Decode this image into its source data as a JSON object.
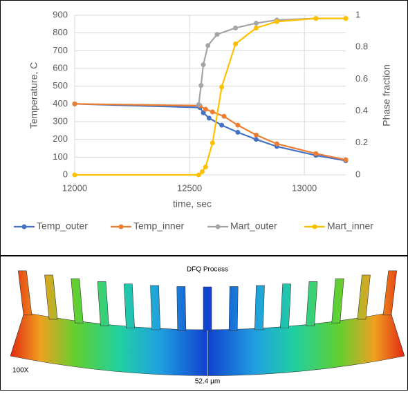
{
  "chart_data": {
    "type": "line",
    "x_label": "time, sec",
    "y_label": "Temperature, C",
    "y2_label": "Phase fraction",
    "xlim": [
      12000,
      13180
    ],
    "xticks": [
      12000,
      12500,
      13000
    ],
    "ylim": [
      0,
      900
    ],
    "yticks": [
      0,
      100,
      200,
      300,
      400,
      500,
      600,
      700,
      800,
      900
    ],
    "y2lim": [
      0,
      1
    ],
    "y2ticks": [
      0,
      0.2,
      0.4,
      0.6,
      0.8,
      1
    ],
    "grid": true,
    "legend": "bottom",
    "series": [
      {
        "name": "Temp_outer",
        "color": "#4472c4",
        "x": [
          12000,
          12545,
          12560,
          12585,
          12640,
          12710,
          12790,
          12880,
          13050,
          13180
        ],
        "values": [
          400,
          380,
          350,
          320,
          280,
          240,
          200,
          160,
          110,
          80
        ]
      },
      {
        "name": "Temp_inner",
        "color": "#ed7d31",
        "x": [
          12000,
          12545,
          12570,
          12600,
          12650,
          12710,
          12790,
          12880,
          13050,
          13180
        ],
        "values": [
          400,
          390,
          370,
          355,
          330,
          280,
          225,
          175,
          120,
          85
        ]
      },
      {
        "name": "Mart_outer",
        "color": "#a5a5a5",
        "axis": "y2",
        "x": [
          12540,
          12550,
          12560,
          12580,
          12620,
          12700,
          12790,
          12880,
          13050,
          13180
        ],
        "values": [
          0.44,
          0.56,
          0.69,
          0.81,
          0.88,
          0.92,
          0.95,
          0.97,
          0.98,
          0.98
        ]
      },
      {
        "name": "Mart_inner",
        "color": "#ffc000",
        "axis": "y2",
        "x": [
          12000,
          12540,
          12555,
          12570,
          12600,
          12640,
          12700,
          12790,
          12880,
          13050,
          13180
        ],
        "values": [
          0,
          0,
          0.02,
          0.05,
          0.2,
          0.55,
          0.82,
          0.92,
          0.96,
          0.98,
          0.98
        ]
      }
    ]
  },
  "image": {
    "title": "DFQ Process",
    "magnification": "100X",
    "scale": "52.4 µm"
  }
}
